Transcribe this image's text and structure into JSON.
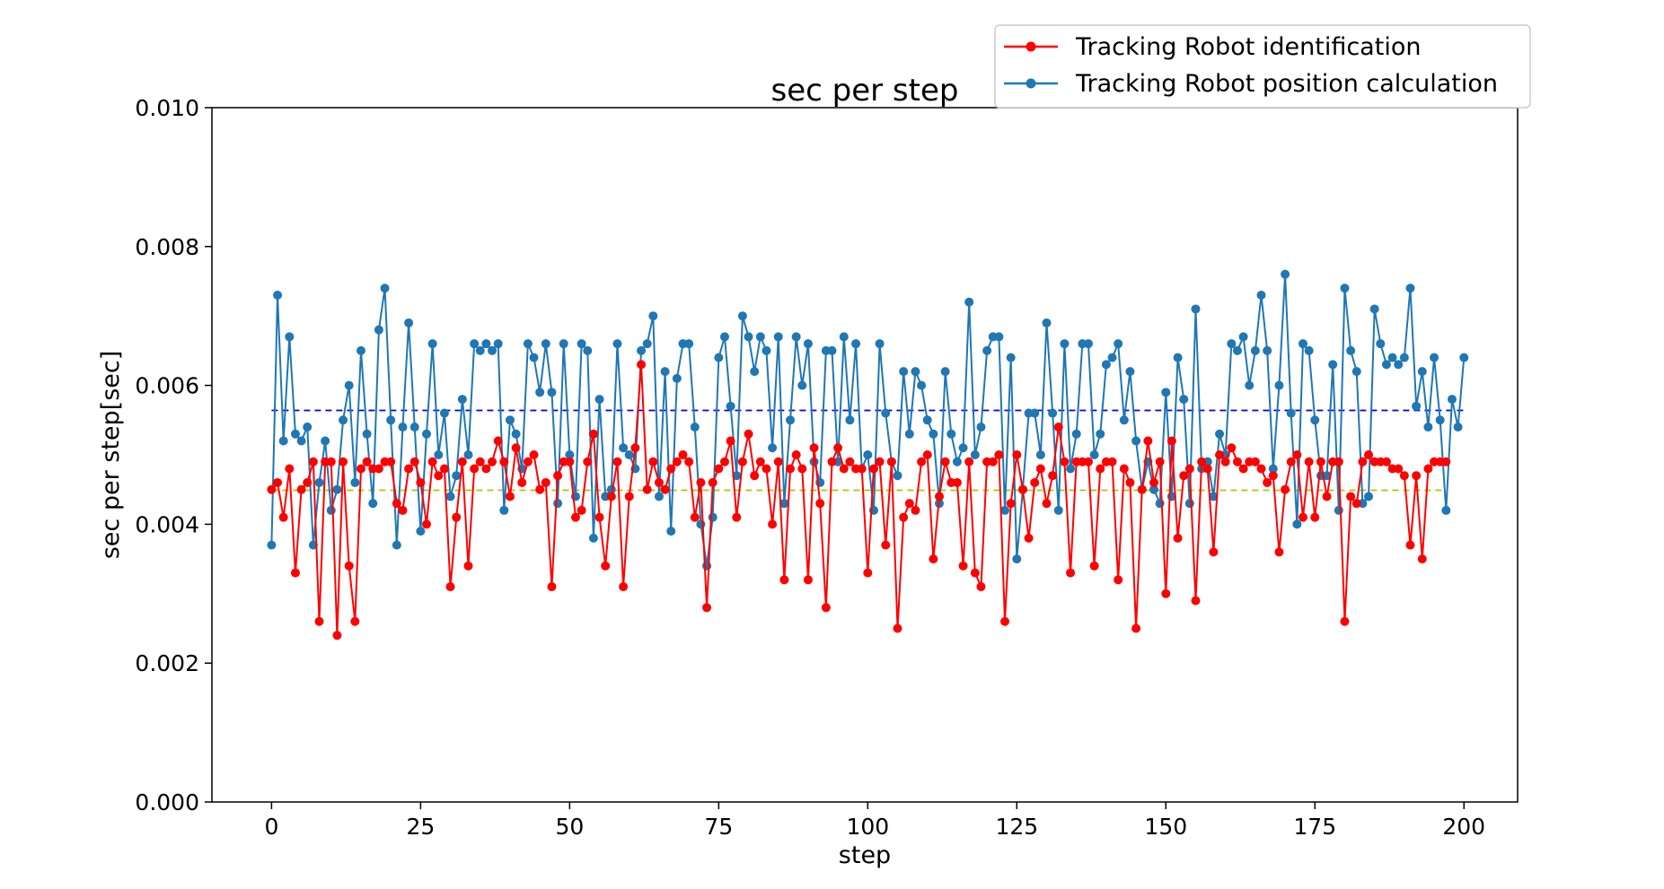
{
  "chart_data": {
    "type": "line",
    "title": "sec per step",
    "xlabel": "step",
    "ylabel": "sec per step[sec]",
    "xlim": [
      -10,
      209
    ],
    "ylim": [
      0.0,
      0.01
    ],
    "xticks": [
      "0",
      "25",
      "50",
      "75",
      "100",
      "125",
      "150",
      "175",
      "200"
    ],
    "yticks": [
      "0.000",
      "0.002",
      "0.004",
      "0.006",
      "0.008",
      "0.010"
    ],
    "grid": false,
    "legend_position": "top-right",
    "series": [
      {
        "name": "Tracking Robot identification",
        "color": "#ff0000",
        "marker": "circle",
        "mean": 0.00449,
        "mean_color": "#bfbf00",
        "x_start": 0,
        "values": [
          0.0045,
          0.0046,
          0.0041,
          0.0048,
          0.0033,
          0.0045,
          0.0046,
          0.0049,
          0.0026,
          0.0049,
          0.0049,
          0.0024,
          0.0049,
          0.0034,
          0.0026,
          0.0048,
          0.0049,
          0.0048,
          0.0048,
          0.0049,
          0.0049,
          0.0043,
          0.0042,
          0.0048,
          0.0049,
          0.0046,
          0.004,
          0.0049,
          0.0047,
          0.0048,
          0.0031,
          0.0041,
          0.0049,
          0.0034,
          0.0048,
          0.0049,
          0.0048,
          0.0049,
          0.0052,
          0.0049,
          0.0044,
          0.0051,
          0.0046,
          0.0049,
          0.005,
          0.0045,
          0.0046,
          0.0031,
          0.0047,
          0.0049,
          0.0049,
          0.0041,
          0.0042,
          0.0049,
          0.0053,
          0.0041,
          0.0034,
          0.0044,
          0.0049,
          0.0031,
          0.0044,
          0.0051,
          0.0063,
          0.0045,
          0.0049,
          0.0046,
          0.0045,
          0.0048,
          0.0049,
          0.005,
          0.0049,
          0.0041,
          0.0046,
          0.0028,
          0.0046,
          0.0048,
          0.0049,
          0.0052,
          0.0041,
          0.0049,
          0.0053,
          0.0047,
          0.0049,
          0.0048,
          0.004,
          0.0049,
          0.0032,
          0.0048,
          0.005,
          0.0048,
          0.0032,
          0.0051,
          0.0043,
          0.0028,
          0.0049,
          0.0051,
          0.0048,
          0.0049,
          0.0048,
          0.0048,
          0.0033,
          0.0048,
          0.0049,
          0.0037,
          0.0049,
          0.0025,
          0.0041,
          0.0043,
          0.0042,
          0.0049,
          0.005,
          0.0035,
          0.0044,
          0.0049,
          0.0046,
          0.0046,
          0.0034,
          0.0049,
          0.0033,
          0.0031,
          0.0049,
          0.0049,
          0.005,
          0.0026,
          0.0043,
          0.005,
          0.0045,
          0.0038,
          0.0046,
          0.0048,
          0.0043,
          0.0047,
          0.0054,
          0.0049,
          0.0033,
          0.0049,
          0.0049,
          0.0049,
          0.0034,
          0.0048,
          0.0049,
          0.0049,
          0.0032,
          0.0048,
          0.0046,
          0.0025,
          0.0045,
          0.0052,
          0.0046,
          0.0049,
          0.003,
          0.0052,
          0.0038,
          0.0047,
          0.0048,
          0.0029,
          0.0049,
          0.0048,
          0.0036,
          0.005,
          0.0049,
          0.0051,
          0.0049,
          0.0048,
          0.0049,
          0.0049,
          0.0048,
          0.0046,
          0.0047,
          0.0036,
          0.0045,
          0.0049,
          0.005,
          0.0041,
          0.0049,
          0.0041,
          0.0049,
          0.0044,
          0.0049,
          0.0049,
          0.0026,
          0.0044,
          0.0043,
          0.0049,
          0.005,
          0.0049,
          0.0049,
          0.0049,
          0.0048,
          0.0048,
          0.0047,
          0.0037,
          0.0047,
          0.0035,
          0.0048,
          0.0049,
          0.0049,
          0.0049
        ]
      },
      {
        "name": "Tracking Robot position calculation",
        "color": "#1f77b4",
        "marker": "circle",
        "mean": 0.00564,
        "mean_color": "#0000ff",
        "x_start": 0,
        "values": [
          0.0037,
          0.0073,
          0.0052,
          0.0067,
          0.0053,
          0.0052,
          0.0054,
          0.0037,
          0.0046,
          0.0052,
          0.0042,
          0.0045,
          0.0055,
          0.006,
          0.0046,
          0.0065,
          0.0053,
          0.0043,
          0.0068,
          0.0074,
          0.0055,
          0.0037,
          0.0054,
          0.0069,
          0.0054,
          0.0039,
          0.0053,
          0.0066,
          0.005,
          0.0056,
          0.0044,
          0.0047,
          0.0058,
          0.005,
          0.0066,
          0.0065,
          0.0066,
          0.0065,
          0.0066,
          0.0042,
          0.0055,
          0.0053,
          0.0048,
          0.0066,
          0.0064,
          0.0059,
          0.0066,
          0.0059,
          0.0043,
          0.0066,
          0.005,
          0.0044,
          0.0066,
          0.0065,
          0.0038,
          0.0058,
          0.0044,
          0.0045,
          0.0066,
          0.0051,
          0.005,
          0.0048,
          0.0065,
          0.0066,
          0.007,
          0.0044,
          0.0062,
          0.0039,
          0.0061,
          0.0066,
          0.0066,
          0.0054,
          0.004,
          0.0034,
          0.0041,
          0.0064,
          0.0067,
          0.0057,
          0.0047,
          0.007,
          0.0067,
          0.0062,
          0.0067,
          0.0065,
          0.0051,
          0.0067,
          0.0043,
          0.0055,
          0.0067,
          0.006,
          0.0066,
          0.0049,
          0.0046,
          0.0065,
          0.0065,
          0.0049,
          0.0067,
          0.0055,
          0.0066,
          0.0048,
          0.005,
          0.0042,
          0.0066,
          0.0056,
          0.0049,
          0.0047,
          0.0062,
          0.0053,
          0.0062,
          0.006,
          0.0055,
          0.0053,
          0.0043,
          0.0062,
          0.0053,
          0.0049,
          0.0051,
          0.0072,
          0.005,
          0.0054,
          0.0065,
          0.0067,
          0.0067,
          0.0042,
          0.0064,
          0.0035,
          0.0045,
          0.0056,
          0.0056,
          0.005,
          0.0069,
          0.0056,
          0.0042,
          0.0066,
          0.0048,
          0.0053,
          0.0066,
          0.0066,
          0.005,
          0.0053,
          0.0063,
          0.0064,
          0.0066,
          0.0055,
          0.0062,
          0.0052,
          0.0045,
          0.0049,
          0.0045,
          0.0043,
          0.0059,
          0.0044,
          0.0064,
          0.0058,
          0.0043,
          0.0071,
          0.0048,
          0.0049,
          0.0044,
          0.0053,
          0.005,
          0.0066,
          0.0065,
          0.0067,
          0.006,
          0.0065,
          0.0073,
          0.0065,
          0.0048,
          0.006,
          0.0076,
          0.0056,
          0.004,
          0.0066,
          0.0065,
          0.0055,
          0.0047,
          0.0047,
          0.0063,
          0.0042,
          0.0074,
          0.0065,
          0.0062,
          0.0043,
          0.0044,
          0.0071,
          0.0066,
          0.0063,
          0.0064,
          0.0063,
          0.0064,
          0.0074,
          0.0057,
          0.0062,
          0.0054,
          0.0064,
          0.0055,
          0.0042,
          0.0058,
          0.0054,
          0.0064
        ]
      }
    ]
  }
}
